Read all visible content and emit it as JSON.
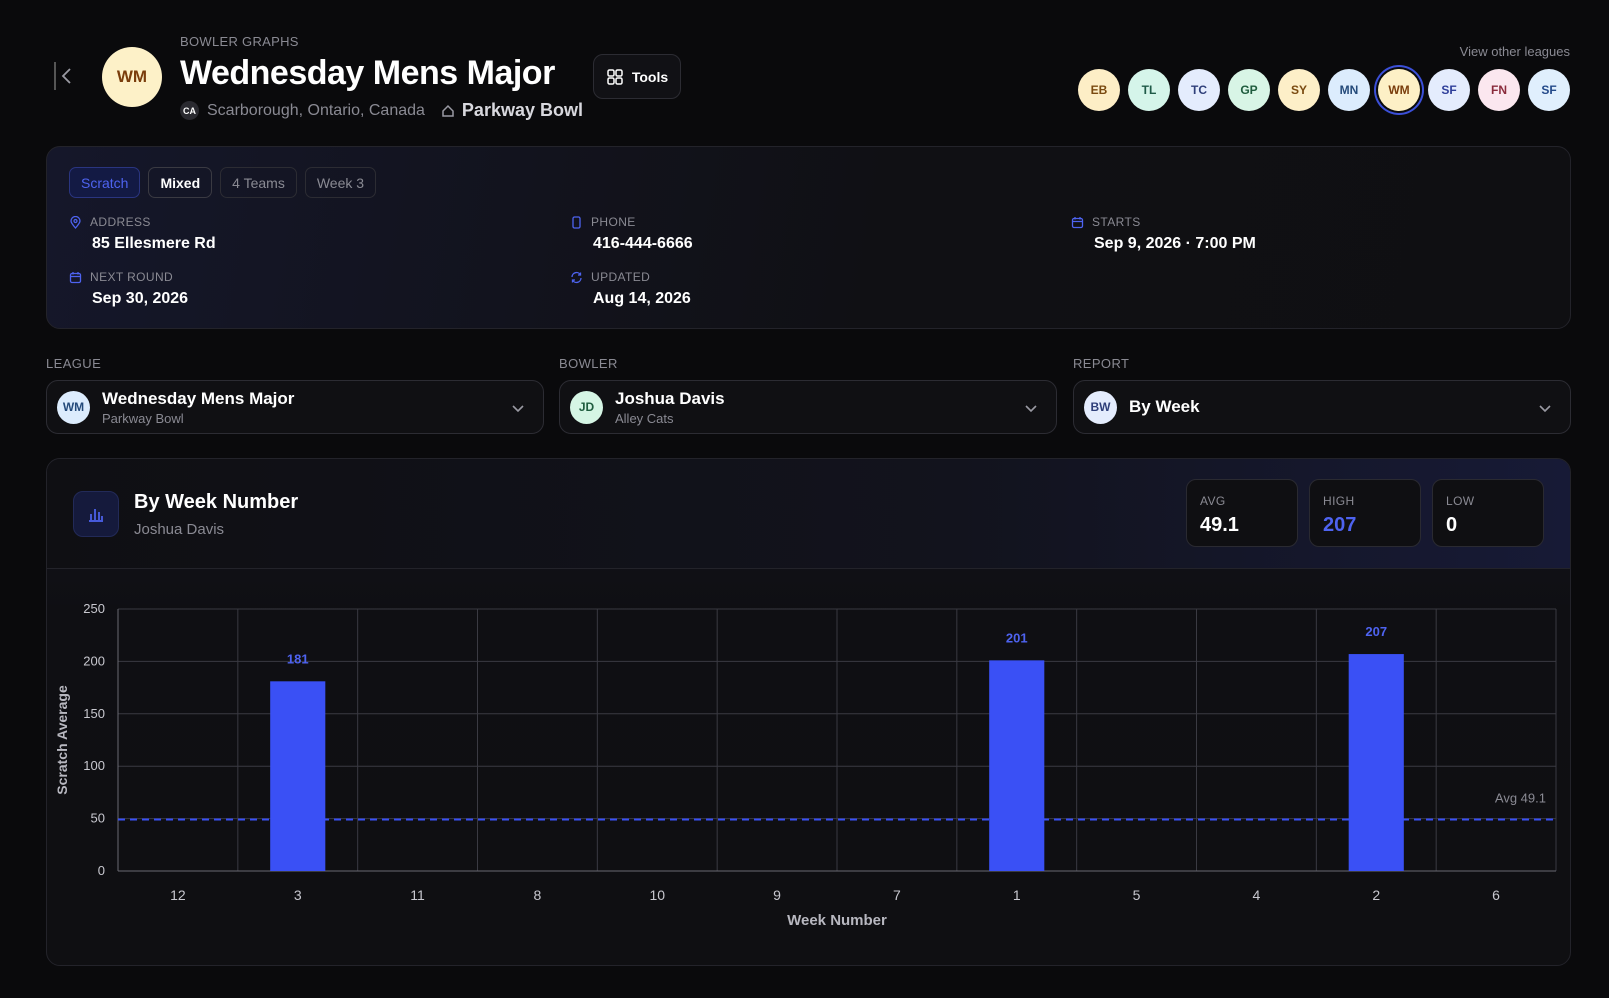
{
  "header": {
    "eyebrow": "BOWLER GRAPHS",
    "logo_initials": "WM",
    "title": "Wednesday Mens Major",
    "country_code": "CA",
    "location": "Scarborough, Ontario, Canada",
    "venue": "Parkway Bowl",
    "tools_label": "Tools",
    "other_leagues_label": "View other leagues",
    "leagues": [
      {
        "initials": "EB",
        "bg": "#fdeec6",
        "fg": "#7a4a10"
      },
      {
        "initials": "TL",
        "bg": "#d5f5ea",
        "fg": "#1f5a48"
      },
      {
        "initials": "TC",
        "bg": "#e4ecfd",
        "fg": "#2f3f7a"
      },
      {
        "initials": "GP",
        "bg": "#d8f5e6",
        "fg": "#1f5c3e"
      },
      {
        "initials": "SY",
        "bg": "#fdefc8",
        "fg": "#7a4a10"
      },
      {
        "initials": "MN",
        "bg": "#dcecfd",
        "fg": "#244a7a"
      },
      {
        "initials": "WM",
        "bg": "#fdf0c6",
        "fg": "#7a3d0c",
        "active": true
      },
      {
        "initials": "SF",
        "bg": "#e4ecfd",
        "fg": "#2f3f9a"
      },
      {
        "initials": "FN",
        "bg": "#fbe7ef",
        "fg": "#8a2b3c"
      },
      {
        "initials": "SF",
        "bg": "#e0effd",
        "fg": "#244a8a"
      }
    ]
  },
  "info": {
    "tags": [
      "Scratch",
      "Mixed",
      "4 Teams",
      "Week 3"
    ],
    "address_label": "ADDRESS",
    "address": "85 Ellesmere Rd",
    "phone_label": "PHONE",
    "phone": "416-444-6666",
    "starts_label": "STARTS",
    "starts": "Sep 9, 2026 · 7:00 PM",
    "next_round_label": "NEXT ROUND",
    "next_round": "Sep 30, 2026",
    "updated_label": "UPDATED",
    "updated": "Aug 14, 2026",
    "accent": "#4e63f0"
  },
  "selectors": {
    "league": {
      "label": "LEAGUE",
      "initials": "WM",
      "main": "Wednesday Mens Major",
      "sub": "Parkway Bowl"
    },
    "bowler": {
      "label": "BOWLER",
      "initials": "JD",
      "main": "Joshua Davis",
      "sub": "Alley Cats"
    },
    "report": {
      "label": "REPORT",
      "initials": "BW",
      "main": "By Week",
      "sub": ""
    }
  },
  "chart_card": {
    "title": "By Week Number",
    "subtitle": "Joshua Davis",
    "stats": [
      {
        "key": "AVG",
        "value": "49.1"
      },
      {
        "key": "HIGH",
        "value": "207"
      },
      {
        "key": "LOW",
        "value": "0"
      }
    ]
  },
  "chart_data": {
    "type": "bar",
    "categories": [
      "12",
      "3",
      "11",
      "8",
      "10",
      "9",
      "7",
      "1",
      "5",
      "4",
      "2",
      "6"
    ],
    "values": [
      0,
      181,
      0,
      0,
      0,
      0,
      0,
      201,
      0,
      0,
      207,
      0
    ],
    "data_labels": [
      "",
      "181",
      "",
      "",
      "",
      "",
      "",
      "201",
      "",
      "",
      "207",
      ""
    ],
    "xlabel": "Week Number",
    "ylabel": "Scratch Average",
    "ylim": [
      0,
      250
    ],
    "yticks": [
      0,
      50,
      100,
      150,
      200,
      250
    ],
    "average_line": 49.1,
    "average_label": "Avg 49.1",
    "grid": true,
    "bar_color": "#3a50f5"
  }
}
